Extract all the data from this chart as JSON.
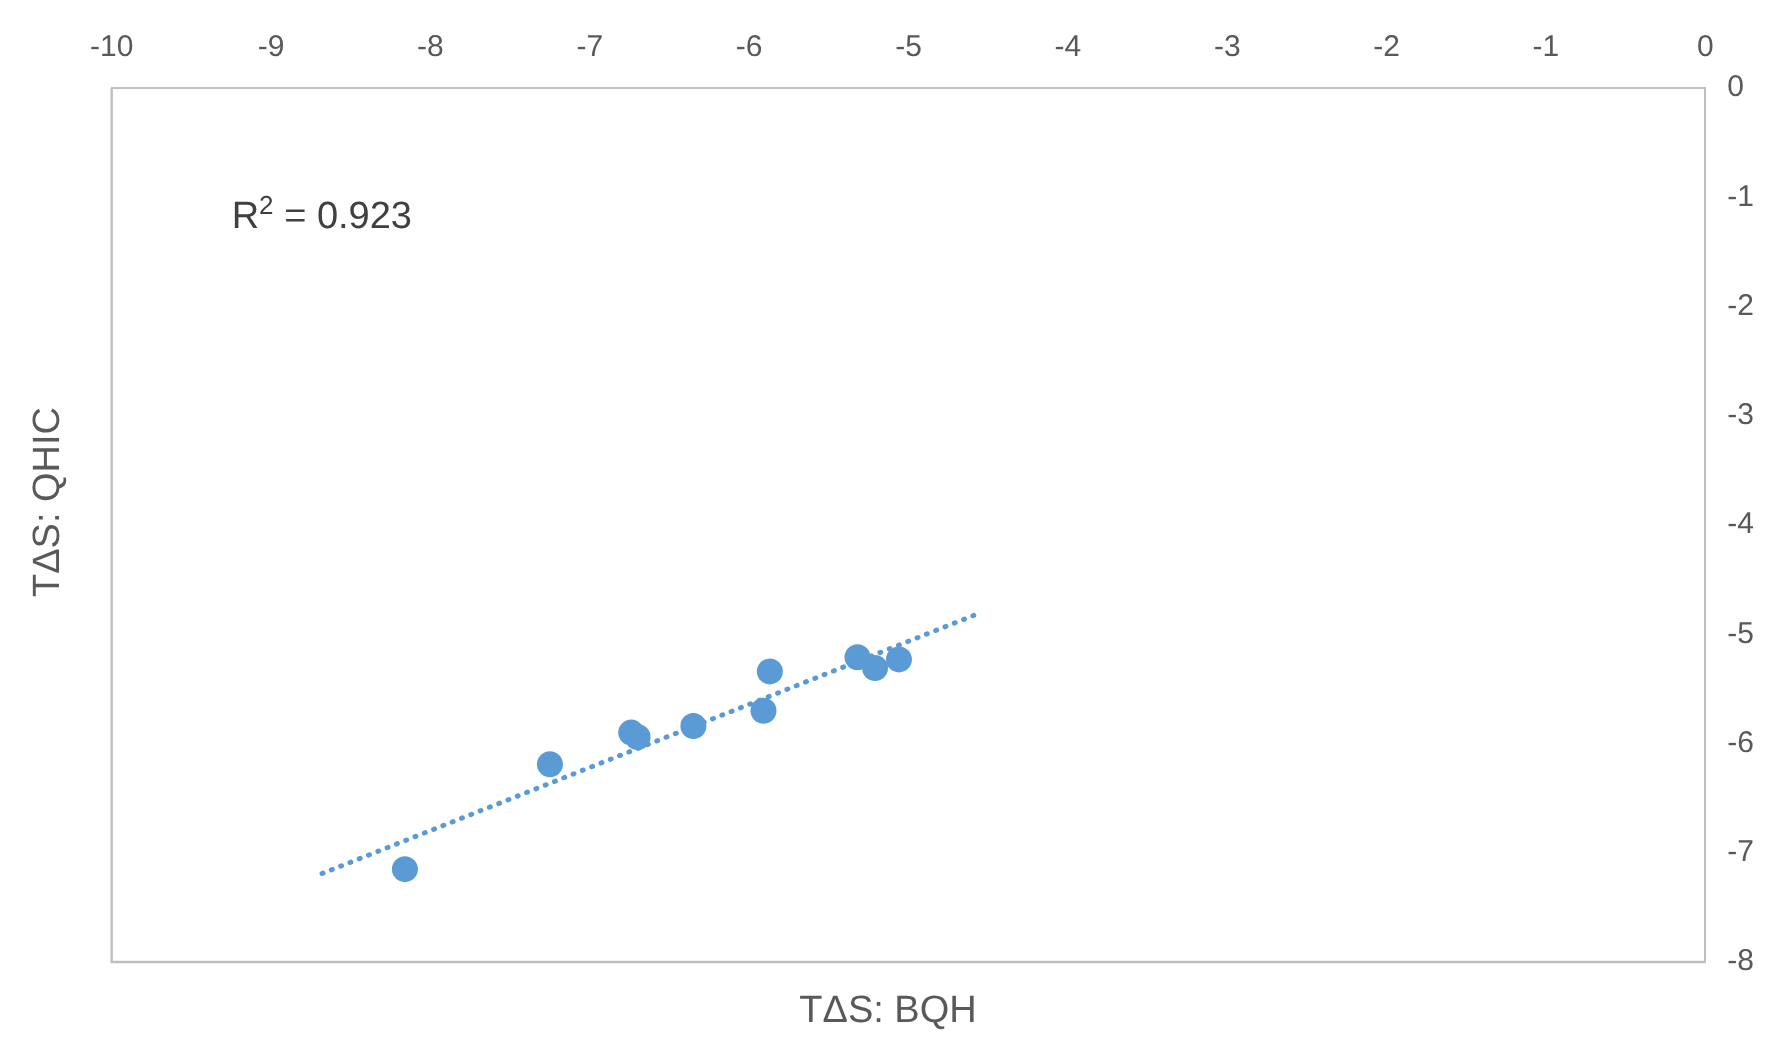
{
  "chart_data": {
    "type": "scatter",
    "xlabel": "TΔS: BQH",
    "ylabel": "TΔS: QHIC",
    "annotations": [
      "R$^{2}$ = 0.923"
    ],
    "xlim": [
      -10,
      0
    ],
    "xticks": [
      -10,
      -9,
      -8,
      -7,
      -6,
      -5,
      -4,
      -3,
      -2,
      -1,
      0
    ],
    "ylim": [
      -8,
      0
    ],
    "yticks": [
      -8,
      -7,
      -6,
      -5,
      -4,
      -3,
      -2,
      -1,
      0
    ],
    "grid": false,
    "legend": false,
    "marker": "circle",
    "series": [
      {
        "color": "#5b9bd5",
        "x": [
          -8.16,
          -7.25,
          -6.74,
          -6.7,
          -6.35,
          -5.91,
          -5.87,
          -5.32,
          -5.21,
          -5.06
        ],
        "values": [
          -7.15,
          -6.19,
          -5.9,
          -5.94,
          -5.84,
          -5.7,
          -5.34,
          -5.21,
          -5.31,
          -5.23
        ]
      },
      {
        "type": "line",
        "color": "#5b9bd5",
        "line_style": "dotted",
        "marker": "none",
        "x": [
          -8.68,
          -4.56
        ],
        "values": [
          -7.19,
          -4.81
        ]
      }
    ]
  }
}
